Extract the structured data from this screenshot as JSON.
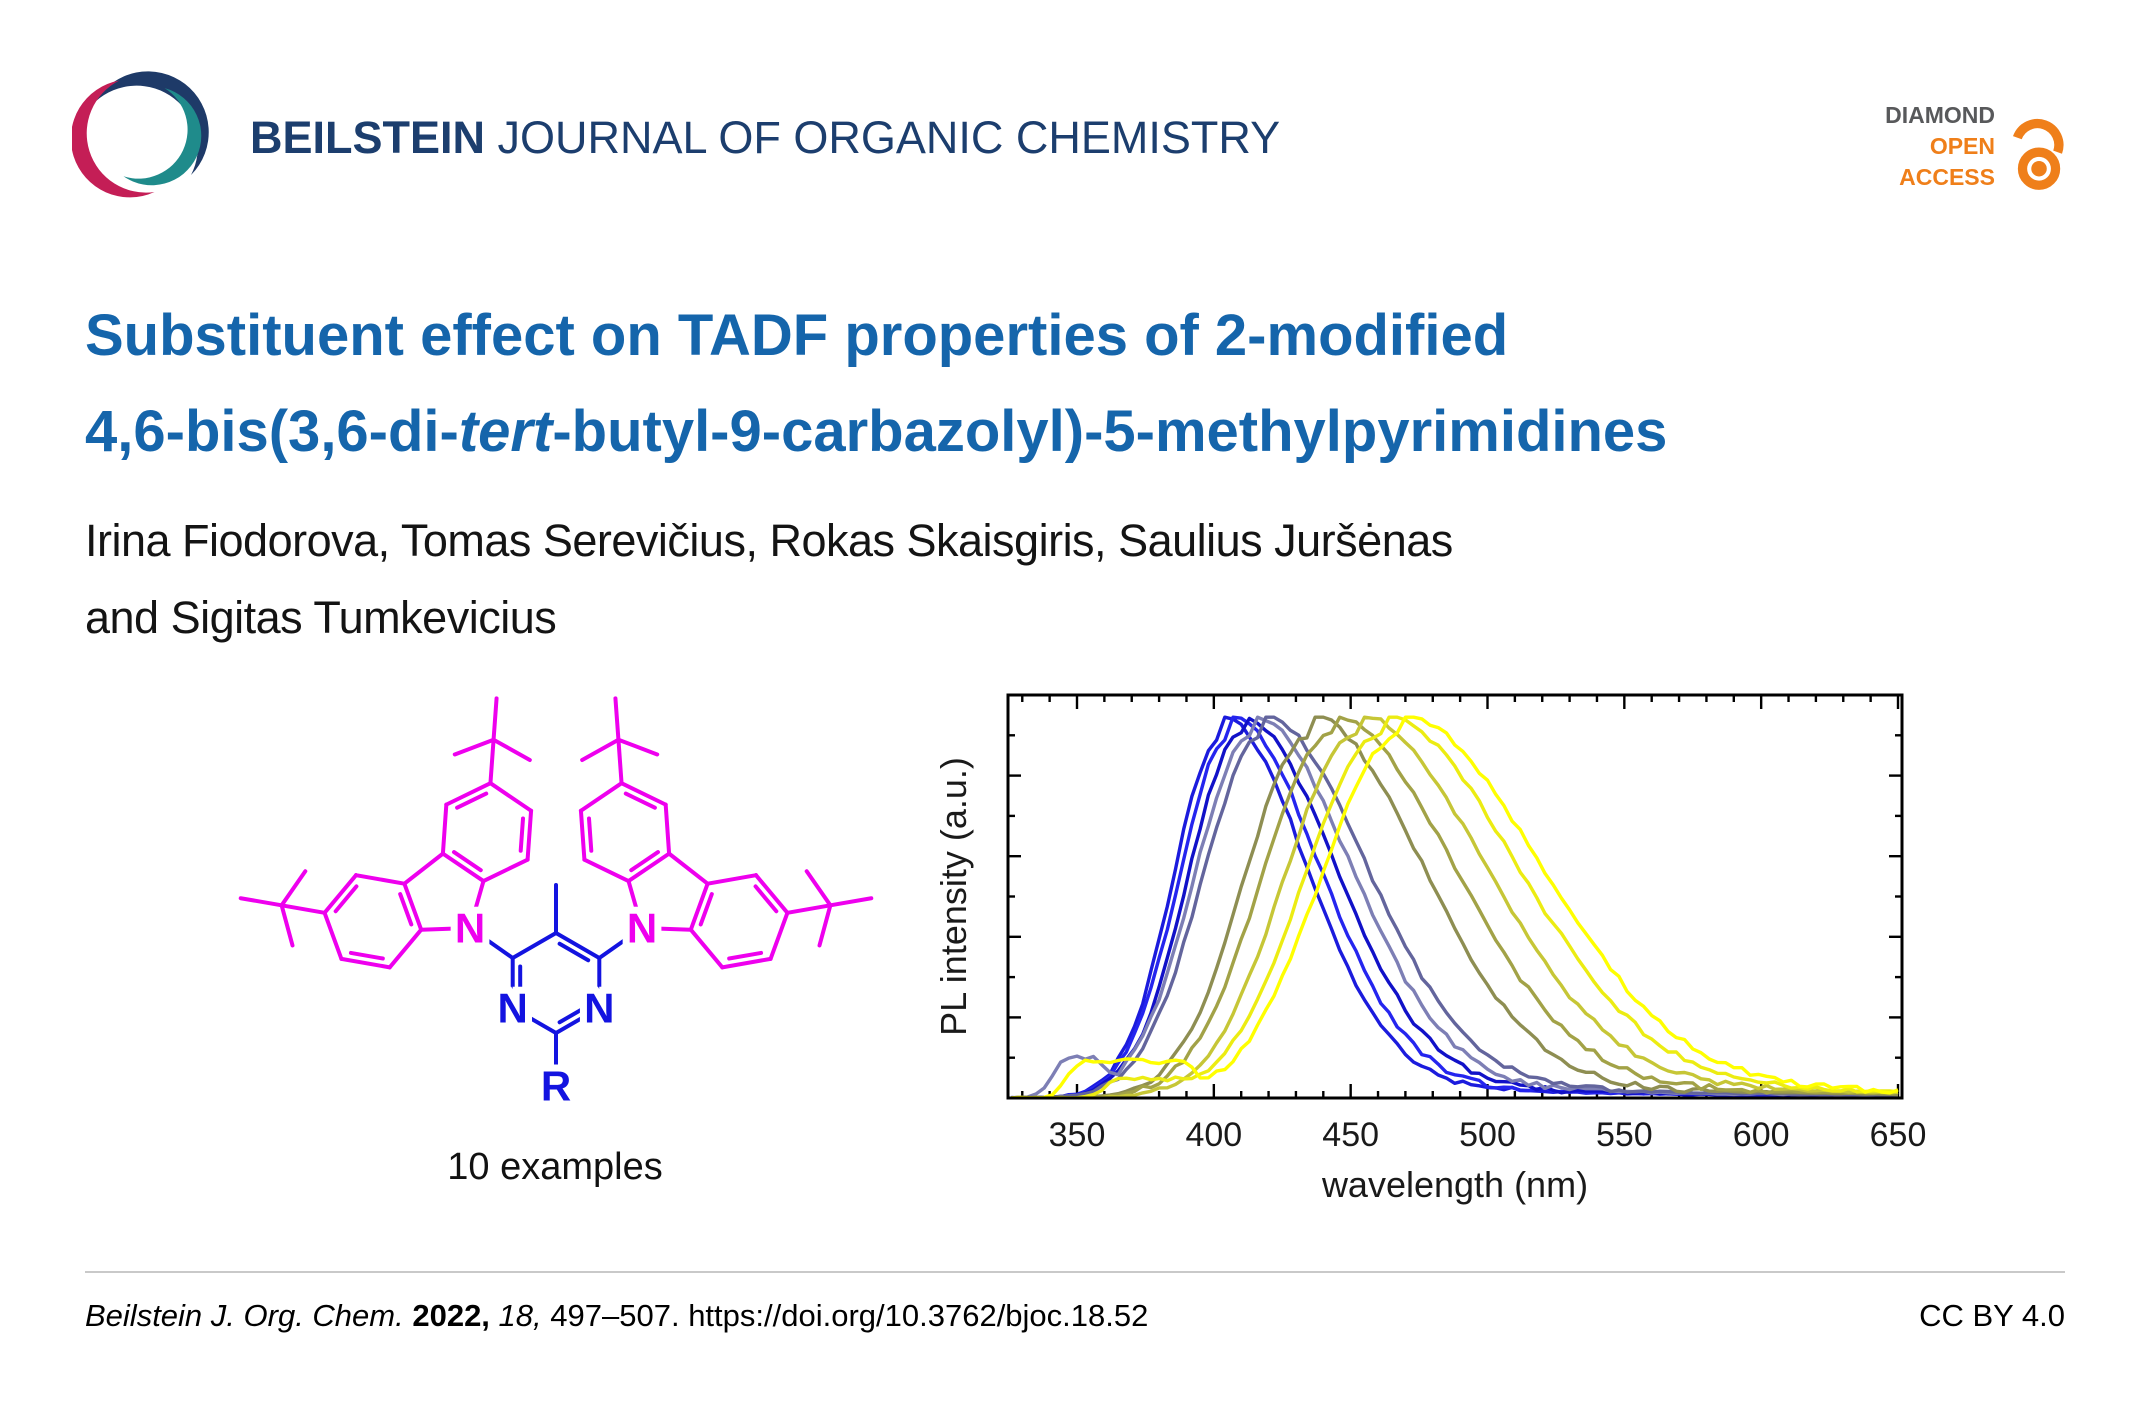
{
  "header": {
    "journal_bold": "BEILSTEIN",
    "journal_rest": " JOURNAL OF ORGANIC CHEMISTRY",
    "journal_color": "#1c3e6e",
    "logo": {
      "navy": "#1e3a68",
      "teal": "#1f8b8b",
      "crimson": "#c41e56"
    },
    "open_access": {
      "diamond": "DIAMOND",
      "open": "OPEN",
      "access": "ACCESS",
      "gray": "#58595b",
      "orange": "#ef7f1a"
    }
  },
  "title": {
    "line1": "Substituent effect on TADF properties of 2-modified",
    "line2_pre": "4,6-bis(3,6-di-",
    "line2_italic": "tert",
    "line2_post": "-butyl-9-carbazolyl)-5-methylpyrimidines",
    "color": "#1565ab"
  },
  "authors": {
    "line1": "Irina Fiodorova, Tomas Serevičius, Rokas Skaisgiris, Saulius Juršėnas",
    "line2": "and Sigitas Tumkevicius"
  },
  "molecule": {
    "caption": "10 examples",
    "colors": {
      "carbazole": "#ee00ee",
      "pyrimidine": "#1313e0"
    },
    "atom_labels": {
      "carbazole_n_left": "N",
      "carbazole_n_right": "N",
      "ring_n_left": "N",
      "ring_n_right": "N",
      "r_group": "R"
    }
  },
  "chart_data": {
    "type": "line",
    "title": "",
    "xlabel": "wavelength (nm)",
    "ylabel": "PL intensity (a.u.)",
    "xlim": [
      325,
      651
    ],
    "x_ticks": [
      350,
      400,
      450,
      500,
      550,
      600,
      650
    ],
    "x_minor_step_nm": 10,
    "ylim_normalized": [
      0,
      1.1
    ],
    "y_ticks_labeled": false,
    "grid": false,
    "legend": "none",
    "peak_normalized_height": 0.9,
    "series": [
      {
        "name": "spectrum-1",
        "hue": "blue",
        "color": "#1b1bdd",
        "peak_nm": 403,
        "width_left_nm": 21,
        "width_right_nm": 36
      },
      {
        "name": "spectrum-2",
        "hue": "blue",
        "color": "#2525ef",
        "peak_nm": 406,
        "width_left_nm": 22,
        "width_right_nm": 38
      },
      {
        "name": "spectrum-3",
        "hue": "blue",
        "color": "#1111c8",
        "peak_nm": 410,
        "width_left_nm": 23,
        "width_right_nm": 40
      },
      {
        "name": "spectrum-4",
        "hue": "slate",
        "color": "#7d7fb5",
        "peak_nm": 414,
        "width_left_nm": 25,
        "width_right_nm": 42,
        "foot": {
          "from_nm": 346,
          "to_nm": 356,
          "amp": 0.11
        }
      },
      {
        "name": "spectrum-5",
        "hue": "slate",
        "color": "#63659d",
        "peak_nm": 418,
        "width_left_nm": 26,
        "width_right_nm": 44
      },
      {
        "name": "spectrum-6",
        "hue": "olive",
        "color": "#8e8e52",
        "peak_nm": 435,
        "width_left_nm": 28,
        "width_right_nm": 48
      },
      {
        "name": "spectrum-7",
        "hue": "olive",
        "color": "#a2a247",
        "peak_nm": 443,
        "width_left_nm": 30,
        "width_right_nm": 52
      },
      {
        "name": "spectrum-8",
        "hue": "dark-yellow",
        "color": "#c6c636",
        "peak_nm": 452,
        "width_left_nm": 31,
        "width_right_nm": 55
      },
      {
        "name": "spectrum-9",
        "hue": "yellow",
        "color": "#ecec12",
        "peak_nm": 461,
        "width_left_nm": 33,
        "width_right_nm": 58,
        "foot": {
          "from_nm": 365,
          "to_nm": 385,
          "amp": 0.055
        }
      },
      {
        "name": "spectrum-10",
        "hue": "yellow",
        "color": "#ffff00",
        "peak_nm": 468,
        "width_left_nm": 34,
        "width_right_nm": 60,
        "foot": {
          "from_nm": 352,
          "to_nm": 388,
          "amp": 0.1
        }
      }
    ]
  },
  "footer": {
    "citation_journal": "Beilstein J. Org. Chem. ",
    "citation_year": "2022, ",
    "citation_volume": "18, ",
    "citation_pages": "497–507. ",
    "citation_doi": "https://doi.org/10.3762/bjoc.18.52",
    "license": "CC BY 4.0"
  }
}
